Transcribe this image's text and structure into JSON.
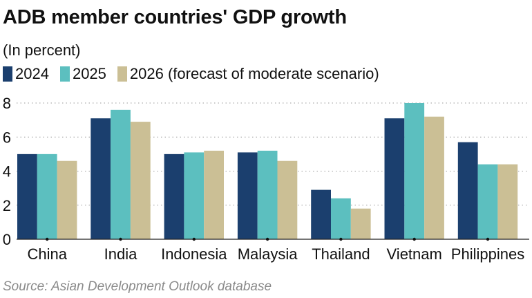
{
  "chart_data": {
    "type": "bar",
    "title": "ADB member countries' GDP growth",
    "subtitle": "(In percent)",
    "categories": [
      "China",
      "India",
      "Indonesia",
      "Malaysia",
      "Thailand",
      "Vietnam",
      "Philippines"
    ],
    "series": [
      {
        "name": "2024",
        "color": "#1b3f6e",
        "values": [
          5.0,
          7.1,
          5.0,
          5.1,
          2.9,
          7.1,
          5.7
        ]
      },
      {
        "name": "2025",
        "color": "#5cbfbf",
        "values": [
          5.0,
          7.6,
          5.1,
          5.2,
          2.4,
          8.0,
          4.4
        ]
      },
      {
        "name": "2026 (forecast of moderate scenario)",
        "color": "#cbbf95",
        "values": [
          4.6,
          6.9,
          5.2,
          4.6,
          1.8,
          7.2,
          4.4
        ]
      }
    ],
    "yticks": [
      "0",
      "2",
      "4",
      "6",
      "8"
    ],
    "ylim": [
      0,
      8
    ],
    "grid": true,
    "legend_position": "top-left",
    "source": "Source: Asian Development Outlook database"
  }
}
